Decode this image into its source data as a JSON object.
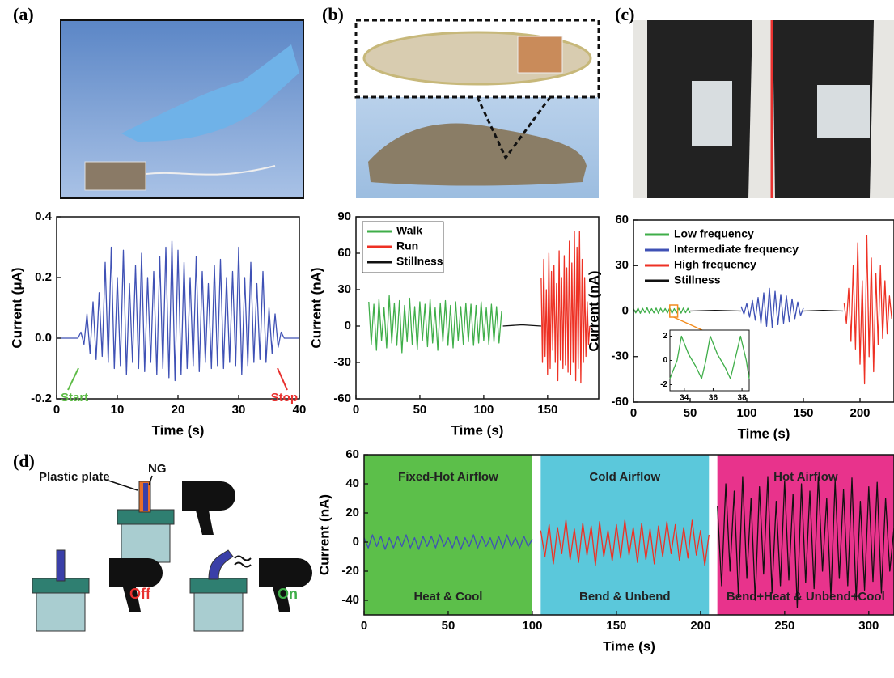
{
  "panel_labels": [
    "(a)",
    "(b)",
    "(c)",
    "(d)"
  ],
  "diagram": {
    "plate": "Plastic plate",
    "ng": "NG",
    "off": "Off",
    "on": "On"
  },
  "chart_data": [
    {
      "type": "line",
      "xlabel": "Time (s)",
      "ylabel": "Current (μA)",
      "xlim": [
        0,
        40
      ],
      "xticks": [
        0,
        10,
        20,
        30,
        40
      ],
      "ylim": [
        -0.2,
        0.4
      ],
      "yticks": [
        -0.2,
        {
          "value": 0,
          "label": "0.0"
        },
        0.2,
        0.4
      ],
      "annotations": [
        {
          "text": "Start",
          "color": "#5dbb46"
        },
        {
          "text": "Stop",
          "color": "#e8312f"
        }
      ],
      "x": [
        0,
        0.5,
        1,
        1.5,
        2,
        2.5,
        3,
        3.5,
        4,
        4.5,
        5,
        5.5,
        6,
        6.5,
        7,
        7.5,
        8,
        8.5,
        9,
        9.5,
        10,
        10.5,
        11,
        11.5,
        12,
        12.5,
        13,
        13.5,
        14,
        14.5,
        15,
        15.5,
        16,
        16.5,
        17,
        17.5,
        18,
        18.5,
        19,
        19.5,
        20,
        20.5,
        21,
        21.5,
        22,
        22.5,
        23,
        23.5,
        24,
        24.5,
        25,
        25.5,
        26,
        26.5,
        27,
        27.5,
        28,
        28.5,
        29,
        29.5,
        30,
        30.5,
        31,
        31.5,
        32,
        32.5,
        33,
        33.5,
        34,
        34.5,
        35,
        35.5,
        36,
        36.5,
        37,
        37.5,
        38,
        38.5,
        39,
        39.5,
        40
      ],
      "series": [
        {
          "color": "#3f51b5",
          "values": [
            0,
            0,
            0,
            0,
            0,
            0,
            0,
            0,
            0.02,
            -0.02,
            0.08,
            -0.05,
            0.12,
            -0.07,
            0.15,
            -0.06,
            0.25,
            -0.08,
            0.3,
            -0.1,
            0.2,
            -0.09,
            0.29,
            -0.12,
            0.18,
            -0.08,
            0.24,
            -0.1,
            0.28,
            -0.11,
            0.2,
            -0.08,
            0.22,
            -0.12,
            0.27,
            -0.1,
            0.3,
            -0.13,
            0.32,
            -0.14,
            0.29,
            -0.12,
            0.25,
            -0.1,
            0.2,
            -0.09,
            0.27,
            -0.11,
            0.22,
            -0.08,
            0.18,
            -0.1,
            0.24,
            -0.09,
            0.26,
            -0.1,
            0.2,
            -0.08,
            0.22,
            -0.09,
            0.3,
            -0.12,
            0.2,
            -0.09,
            0.25,
            -0.08,
            0.18,
            -0.07,
            0.22,
            -0.08,
            0.1,
            -0.05,
            0.08,
            -0.03,
            0.02,
            0,
            0,
            0,
            0,
            0,
            0
          ]
        }
      ]
    },
    {
      "type": "line",
      "xlabel": "Time (s)",
      "ylabel": "Current (nA)",
      "xlim": [
        0,
        190
      ],
      "xticks": [
        0,
        50,
        100,
        150
      ],
      "ylim": [
        -60,
        90
      ],
      "yticks": [
        -60,
        -30,
        0,
        30,
        60,
        90
      ],
      "legend": "upper left",
      "series": [
        {
          "name": "Walk",
          "color": "#3fae49",
          "x": [
            10,
            12,
            14,
            16,
            18,
            20,
            22,
            24,
            26,
            28,
            30,
            32,
            34,
            36,
            38,
            40,
            42,
            44,
            46,
            48,
            50,
            52,
            54,
            56,
            58,
            60,
            62,
            64,
            66,
            68,
            70,
            72,
            74,
            76,
            78,
            80,
            82,
            84,
            86,
            88,
            90,
            92,
            94,
            96,
            98,
            100,
            102,
            104,
            106,
            108,
            110,
            112,
            114
          ],
          "values": [
            20,
            -15,
            18,
            -20,
            22,
            -12,
            15,
            -18,
            25,
            -14,
            19,
            -16,
            21,
            -22,
            17,
            -13,
            23,
            -15,
            16,
            -19,
            20,
            -12,
            18,
            -17,
            22,
            -14,
            15,
            -20,
            19,
            -13,
            21,
            -16,
            17,
            -18,
            20,
            -12,
            16,
            -15,
            19,
            -13,
            18,
            -16,
            17,
            -14,
            20,
            -12,
            15,
            -15,
            18,
            -13,
            16,
            -14,
            12
          ]
        },
        {
          "name": "Run",
          "color": "#ee3124",
          "x": [
            145,
            146,
            147,
            148,
            149,
            150,
            151,
            152,
            153,
            154,
            155,
            156,
            157,
            158,
            159,
            160,
            161,
            162,
            163,
            164,
            165,
            166,
            167,
            168,
            169,
            170,
            171,
            172,
            173,
            174,
            175,
            176,
            177,
            178,
            179,
            180,
            181,
            182,
            183
          ],
          "values": [
            40,
            -30,
            55,
            -25,
            30,
            -40,
            60,
            -35,
            45,
            -20,
            50,
            -30,
            35,
            -45,
            62,
            -28,
            40,
            -35,
            58,
            -32,
            48,
            -38,
            70,
            -40,
            52,
            -30,
            78,
            -45,
            65,
            -35,
            78,
            -47,
            55,
            -30,
            40,
            -25,
            20,
            -15,
            0
          ]
        },
        {
          "name": "Stillness",
          "color": "#111111",
          "x": [
            115,
            130,
            145,
            164,
            183,
            190
          ],
          "values": [
            0,
            1,
            0,
            null,
            0,
            0
          ]
        }
      ]
    },
    {
      "type": "line",
      "xlabel": "Time (s)",
      "ylabel": "Current (nA)",
      "xlim": [
        0,
        230
      ],
      "xticks": [
        0,
        50,
        100,
        150,
        200
      ],
      "ylim": [
        -60,
        60
      ],
      "yticks": [
        -60,
        -30,
        0,
        30,
        60
      ],
      "legend": "upper left",
      "series": [
        {
          "name": "Low frequency",
          "color": "#3fae49",
          "x": [
            0,
            2,
            4,
            6,
            8,
            10,
            12,
            14,
            16,
            18,
            20,
            22,
            24,
            26,
            28,
            30,
            32,
            34,
            36,
            38,
            40,
            42,
            44,
            46,
            48,
            50
          ],
          "values": [
            1.5,
            -1.2,
            2,
            -1.5,
            1.8,
            -1,
            2.2,
            -1.4,
            1.6,
            -1.2,
            2,
            -1.6,
            1.9,
            -1.1,
            1.7,
            -1.3,
            2.1,
            -1.5,
            1.6,
            -1.2,
            1.9,
            -1.4,
            2,
            -1.1,
            1.8,
            -1.3
          ]
        },
        {
          "name": "Intermediate frequency",
          "color": "#3f51b5",
          "x": [
            95,
            97.5,
            100,
            102.5,
            105,
            107.5,
            110,
            112.5,
            115,
            117.5,
            120,
            122.5,
            125,
            127.5,
            130,
            132.5,
            135,
            137.5,
            140,
            142.5,
            145,
            147.5,
            150
          ],
          "values": [
            3,
            -2,
            5,
            -4,
            7,
            -6,
            9,
            -8,
            12,
            -10,
            15,
            -11,
            13,
            -9,
            11,
            -8,
            10,
            -7,
            8,
            -5,
            6,
            -3,
            2
          ]
        },
        {
          "name": "High frequency",
          "color": "#ee3124",
          "x": [
            186,
            188,
            190,
            192,
            194,
            196,
            198,
            200,
            202,
            204,
            206,
            208,
            210,
            212,
            214,
            216,
            218,
            220,
            222,
            224,
            226,
            228
          ],
          "values": [
            5,
            -8,
            15,
            -20,
            30,
            -25,
            45,
            -35,
            20,
            -48,
            50,
            -30,
            35,
            -40,
            25,
            -22,
            30,
            -18,
            20,
            -15,
            10,
            -5
          ]
        },
        {
          "name": "Stillness",
          "color": "#111111",
          "x": [
            50,
            72,
            95,
            122,
            150,
            168,
            185
          ],
          "values": [
            0,
            0.5,
            0,
            null,
            0,
            0.5,
            0
          ]
        }
      ],
      "inset": {
        "xlim": [
          33,
          38.5
        ],
        "xticks": [
          34,
          36,
          38
        ],
        "ylim": [
          -2.5,
          2.5
        ],
        "yticks": [
          2,
          0,
          -2
        ],
        "series": [
          {
            "color": "#3fae49",
            "x": [
              33,
              33.5,
              33.8,
              34.3,
              34.8,
              35.2,
              35.5,
              35.8,
              36.3,
              36.8,
              37.2,
              37.5,
              37.9,
              38.3,
              38.5
            ],
            "values": [
              -1.5,
              0,
              2,
              0.5,
              -0.5,
              -1.5,
              0,
              2,
              0.5,
              -0.5,
              -1.5,
              0,
              2,
              0,
              -1.5
            ]
          }
        ]
      }
    },
    {
      "type": "line",
      "xlabel": "Time (s)",
      "ylabel": "Current (nA)",
      "xlim": [
        0,
        315
      ],
      "xticks": [
        0,
        50,
        100,
        150,
        200,
        250,
        300
      ],
      "ylim": [
        -50,
        60
      ],
      "yticks": [
        -40,
        -20,
        0,
        20,
        40,
        60
      ],
      "regions": [
        {
          "x0": 0,
          "x1": 100,
          "color": "#5cbf4a",
          "label": "Fixed-Hot Airflow",
          "sublabel": "Heat & Cool"
        },
        {
          "x0": 105,
          "x1": 205,
          "color": "#5bc8db",
          "label": "Cold Airflow",
          "sublabel": "Bend & Unbend"
        },
        {
          "x0": 210,
          "x1": 315,
          "color": "#e8338c",
          "label": "Hot Airflow",
          "sublabel": "Bend+Heat & Unbend+Cool"
        }
      ],
      "series": [
        {
          "color": "#3f51b5",
          "x": [
            0,
            2.5,
            5,
            7.5,
            10,
            12.5,
            15,
            17.5,
            20,
            22.5,
            25,
            27.5,
            30,
            32.5,
            35,
            37.5,
            40,
            42.5,
            45,
            47.5,
            50,
            52.5,
            55,
            57.5,
            60,
            62.5,
            65,
            67.5,
            70,
            72.5,
            75,
            77.5,
            80,
            82.5,
            85,
            87.5,
            90,
            92.5,
            95,
            97.5,
            100
          ],
          "values": [
            3,
            -4,
            5,
            -3,
            4,
            -5,
            3,
            -4,
            4,
            -3,
            5,
            -4,
            3,
            -5,
            4,
            -3,
            4,
            -4,
            5,
            -3,
            3,
            -4,
            4,
            -5,
            3,
            -3,
            5,
            -4,
            4,
            -3,
            3,
            -5,
            4,
            -4,
            5,
            -3,
            3,
            -4,
            4,
            -3,
            2
          ]
        },
        {
          "color": "#ee3124",
          "x": [
            105,
            107.5,
            110,
            112.5,
            115,
            117.5,
            120,
            122.5,
            125,
            127.5,
            130,
            132.5,
            135,
            137.5,
            140,
            142.5,
            145,
            147.5,
            150,
            152.5,
            155,
            157.5,
            160,
            162.5,
            165,
            167.5,
            170,
            172.5,
            175,
            177.5,
            180,
            182.5,
            185,
            187.5,
            190,
            192.5,
            195,
            197.5,
            200,
            202.5,
            205
          ],
          "values": [
            8,
            -10,
            12,
            -15,
            10,
            -8,
            15,
            -12,
            9,
            -14,
            13,
            -9,
            11,
            -16,
            14,
            -10,
            8,
            -13,
            12,
            -11,
            15,
            -9,
            10,
            -14,
            13,
            -12,
            9,
            -15,
            11,
            -10,
            14,
            -8,
            12,
            -13,
            10,
            -11,
            15,
            -9,
            8,
            -16,
            5
          ]
        },
        {
          "color": "#111111",
          "x": [
            210,
            212.5,
            215,
            217.5,
            220,
            222.5,
            225,
            227.5,
            230,
            232.5,
            235,
            237.5,
            240,
            242.5,
            245,
            247.5,
            250,
            252.5,
            255,
            257.5,
            260,
            262.5,
            265,
            267.5,
            270,
            272.5,
            275,
            277.5,
            280,
            282.5,
            285,
            287.5,
            290,
            292.5,
            295,
            297.5,
            300,
            302.5,
            305,
            307.5,
            310,
            312.5,
            315
          ],
          "values": [
            25,
            -30,
            40,
            -20,
            35,
            -38,
            45,
            -25,
            30,
            -40,
            38,
            -22,
            45,
            -35,
            28,
            -30,
            42,
            -26,
            33,
            -45,
            40,
            -28,
            35,
            -32,
            45,
            -20,
            30,
            -38,
            42,
            -25,
            36,
            -30,
            44,
            -40,
            28,
            -33,
            38,
            -27,
            41,
            -35,
            30,
            -20,
            10
          ]
        }
      ]
    }
  ]
}
